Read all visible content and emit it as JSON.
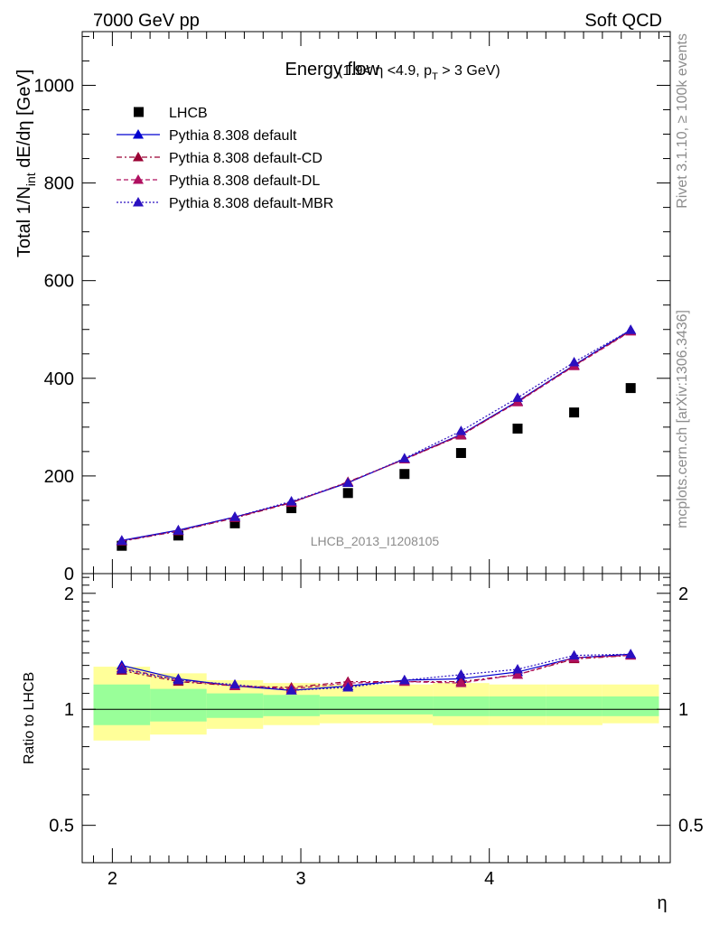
{
  "header": {
    "left": "7000 GeV pp",
    "right": "Soft QCD"
  },
  "side_labels": {
    "rivet": "Rivet 3.1.10, ≥ 100k events",
    "mcplots": "mcplots.cern.ch [arXiv:1306.3436]"
  },
  "watermark": "LHCB_2013_I1208105",
  "chart_data": [
    {
      "type": "scatter",
      "panel": "main",
      "title": "Energy flow",
      "title_sub": "(1.9< η <4.9, p",
      "title_sub_T": "T",
      "title_sub_end": " > 3 GeV)",
      "ylabel_main": "Total 1/N",
      "ylabel_sub": "int",
      "ylabel_rest": " dE/dη [GeV]",
      "xlim": [
        1.84,
        4.96
      ],
      "ylim": [
        0,
        1110
      ],
      "yticks": [
        0,
        200,
        400,
        600,
        800,
        1000
      ],
      "ytick_labels": [
        "0",
        "200",
        "400",
        "600",
        "800",
        "1000"
      ],
      "legend_position": "top-left",
      "x": [
        2.05,
        2.35,
        2.65,
        2.95,
        3.25,
        3.55,
        3.85,
        4.15,
        4.45,
        4.75
      ],
      "series": [
        {
          "name": "LHCB",
          "color": "#000000",
          "marker": "square",
          "line": "none",
          "values": [
            57,
            78,
            103,
            134,
            165,
            204,
            247,
            297,
            330,
            380
          ]
        },
        {
          "name": "Pythia 8.308 default",
          "color": "#0000d0",
          "marker": "triangle",
          "line": "solid",
          "values": [
            68,
            89,
            116,
            146,
            186,
            235,
            285,
            353,
            427,
            499
          ]
        },
        {
          "name": "Pythia 8.308 default-CD",
          "color": "#9a0033",
          "marker": "triangle",
          "line": "dashdot",
          "values": [
            66,
            87,
            114,
            145,
            188,
            234,
            283,
            352,
            426,
            497
          ]
        },
        {
          "name": "Pythia 8.308 default-DL",
          "color": "#b01060",
          "marker": "triangle",
          "line": "dashed",
          "values": [
            67,
            88,
            115,
            146,
            187,
            234,
            284,
            351,
            425,
            496
          ]
        },
        {
          "name": "Pythia 8.308 default-MBR",
          "color": "#2a10c0",
          "marker": "triangle",
          "line": "dotted",
          "values": [
            67,
            88,
            116,
            148,
            186,
            236,
            292,
            360,
            433,
            499
          ]
        }
      ]
    },
    {
      "type": "line",
      "panel": "ratio",
      "ylabel": "Ratio to LHCB",
      "xlabel": "η",
      "xticks": [
        2,
        3,
        4
      ],
      "xtick_labels": [
        "2",
        "3",
        "4"
      ],
      "ylim": [
        0.4,
        2.25
      ],
      "yticks": [
        0.5,
        1,
        2
      ],
      "ytick_labels": [
        "0.5",
        "1",
        "2"
      ],
      "band_edges": [
        1.9,
        2.2,
        2.5,
        2.8,
        3.1,
        3.4,
        3.7,
        4.0,
        4.3,
        4.6,
        4.9
      ],
      "band_green": [
        [
          0.91,
          1.16
        ],
        [
          0.93,
          1.13
        ],
        [
          0.95,
          1.1
        ],
        [
          0.96,
          1.09
        ],
        [
          0.97,
          1.08
        ],
        [
          0.97,
          1.08
        ],
        [
          0.96,
          1.08
        ],
        [
          0.96,
          1.08
        ],
        [
          0.96,
          1.08
        ],
        [
          0.96,
          1.08
        ]
      ],
      "band_yellow": [
        [
          0.83,
          1.29
        ],
        [
          0.86,
          1.24
        ],
        [
          0.89,
          1.19
        ],
        [
          0.91,
          1.17
        ],
        [
          0.92,
          1.16
        ],
        [
          0.92,
          1.16
        ],
        [
          0.91,
          1.17
        ],
        [
          0.91,
          1.16
        ],
        [
          0.91,
          1.16
        ],
        [
          0.92,
          1.16
        ]
      ],
      "band_colors": {
        "green": "#99ff99",
        "yellow": "#ffff99"
      },
      "x": [
        2.05,
        2.35,
        2.65,
        2.95,
        3.25,
        3.55,
        3.85,
        4.15,
        4.45,
        4.75
      ],
      "series": [
        {
          "name": "Pythia 8.308 default",
          "color": "#0000d0",
          "line": "solid",
          "values": [
            1.3,
            1.2,
            1.15,
            1.12,
            1.15,
            1.19,
            1.2,
            1.25,
            1.36,
            1.39
          ]
        },
        {
          "name": "Pythia 8.308 default-CD",
          "color": "#9a0033",
          "line": "dashdot",
          "values": [
            1.26,
            1.18,
            1.15,
            1.14,
            1.18,
            1.18,
            1.18,
            1.23,
            1.35,
            1.38
          ]
        },
        {
          "name": "Pythia 8.308 default-DL",
          "color": "#b01060",
          "line": "dashed",
          "values": [
            1.28,
            1.19,
            1.15,
            1.13,
            1.17,
            1.18,
            1.17,
            1.23,
            1.36,
            1.38
          ]
        },
        {
          "name": "Pythia 8.308 default-MBR",
          "color": "#2a10c0",
          "line": "dotted",
          "values": [
            1.27,
            1.19,
            1.16,
            1.12,
            1.14,
            1.19,
            1.23,
            1.27,
            1.38,
            1.39
          ]
        }
      ]
    }
  ]
}
